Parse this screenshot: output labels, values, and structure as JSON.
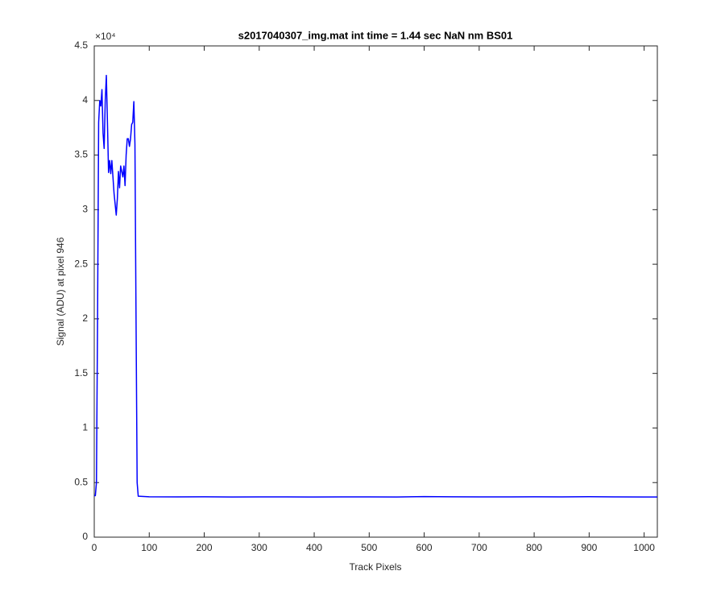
{
  "chart_data": {
    "type": "line",
    "title": "s2017040307_img.mat int time = 1.44 sec  NaN nm BS01",
    "x_label": "Track Pixels",
    "y_label": "Signal (ADU) at pixel 946",
    "y_multiplier": "×10⁴",
    "color": "#0000ff",
    "x": [
      0,
      2,
      4,
      6,
      8,
      10,
      12,
      14,
      16,
      18,
      20,
      22,
      24,
      26,
      28,
      30,
      32,
      34,
      36,
      38,
      40,
      42,
      44,
      46,
      48,
      50,
      52,
      54,
      56,
      58,
      60,
      62,
      64,
      66,
      68,
      70,
      72,
      74,
      76,
      78,
      80,
      100,
      150,
      200,
      250,
      300,
      350,
      400,
      450,
      500,
      550,
      600,
      650,
      700,
      750,
      800,
      850,
      900,
      950,
      1000,
      1024
    ],
    "values": [
      3800,
      3800,
      5000,
      20000,
      38000,
      40000,
      39500,
      41000,
      37000,
      35600,
      40000,
      42300,
      38000,
      33400,
      34500,
      33300,
      34500,
      33000,
      31500,
      30500,
      29500,
      31000,
      33500,
      32000,
      34000,
      33500,
      33000,
      34000,
      32200,
      35000,
      36500,
      36500,
      35800,
      36500,
      37800,
      38000,
      39900,
      36000,
      20000,
      5000,
      3750,
      3700,
      3690,
      3700,
      3680,
      3690,
      3690,
      3680,
      3690,
      3690,
      3680,
      3720,
      3700,
      3690,
      3690,
      3700,
      3690,
      3710,
      3690,
      3680,
      3680
    ],
    "xlim": [
      0,
      1024
    ],
    "ylim": [
      0,
      45000
    ],
    "xticks": [
      0,
      100,
      200,
      300,
      400,
      500,
      600,
      700,
      800,
      900,
      1000
    ],
    "yticks": [
      0,
      {
        "value": 5000,
        "label": "0.5"
      },
      {
        "value": 10000,
        "label": "1"
      },
      {
        "value": 15000,
        "label": "1.5"
      },
      {
        "value": 20000,
        "label": "2"
      },
      {
        "value": 25000,
        "label": "2.5"
      },
      {
        "value": 30000,
        "label": "3"
      },
      {
        "value": 35000,
        "label": "3.5"
      },
      {
        "value": 40000,
        "label": "4"
      },
      {
        "value": 45000,
        "label": "4.5"
      }
    ],
    "grid": false
  }
}
